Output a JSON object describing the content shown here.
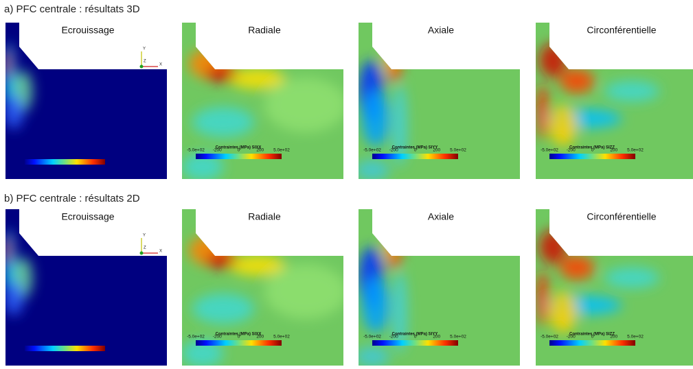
{
  "rows": [
    {
      "title": "a) PFC centrale : résultats 3D",
      "panels": [
        {
          "title": "Ecrouissage",
          "triad": [
            "Y",
            "Z",
            "X"
          ]
        },
        {
          "title": "Radiale",
          "colorbar": {
            "title": "Contraintes (MPa) SIXX",
            "ticks": [
              "-5.0e+02",
              "-200",
              "0",
              "200",
              "5.0e+02"
            ]
          }
        },
        {
          "title": "Axiale",
          "colorbar": {
            "title": "Contraintes (MPa) SIYY",
            "ticks": [
              "-5.0e+02",
              "-200",
              "0",
              "200",
              "5.0e+02"
            ]
          }
        },
        {
          "title": "Circonférentielle",
          "colorbar": {
            "title": "Contraintes (MPa) SIZZ",
            "ticks": [
              "-5.0e+02",
              "-200",
              "0",
              "200",
              "5.0e+02"
            ]
          }
        }
      ]
    },
    {
      "title": "b) PFC centrale : résultats 2D",
      "panels": [
        {
          "title": "Ecrouissage",
          "triad": [
            "Y",
            "Z",
            "X"
          ]
        },
        {
          "title": "Radiale",
          "colorbar": {
            "title": "Contraintes (MPa) SIXX",
            "ticks": [
              "-5.0e+02",
              "-200",
              "0",
              "200",
              "5.0e+02"
            ]
          }
        },
        {
          "title": "Axiale",
          "colorbar": {
            "title": "Contraintes (MPa) SIYY",
            "ticks": [
              "-5.0e+02",
              "-200",
              "0",
              "200",
              "5.0e+02"
            ]
          }
        },
        {
          "title": "Circonférentielle",
          "colorbar": {
            "title": "Contraintes (MPa) SIZZ",
            "ticks": [
              "-5.0e+02",
              "-200",
              "0",
              "200",
              "5.0e+02"
            ]
          }
        }
      ]
    }
  ]
}
